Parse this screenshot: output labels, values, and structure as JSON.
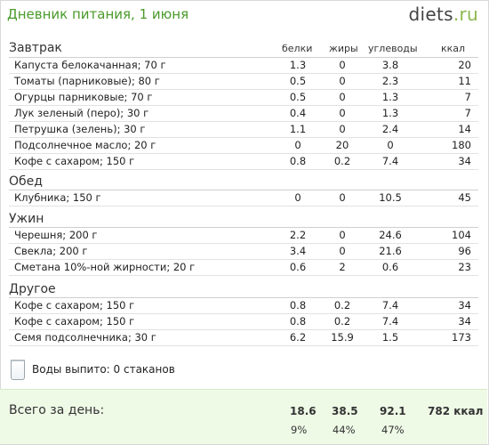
{
  "header": {
    "title": "Дневник питания, 1 июня",
    "logo": {
      "main": "diets",
      "dot": ".",
      "tld": "ru"
    }
  },
  "columns": {
    "protein": "белки",
    "fat": "жиры",
    "carbs": "углеводы",
    "kcal": "ккал"
  },
  "sections": [
    {
      "name": "Завтрак",
      "items": [
        {
          "name": "Капуста белокачанная; 70 г",
          "protein": "1.3",
          "fat": "0",
          "carbs": "3.8",
          "kcal": "20"
        },
        {
          "name": "Томаты (парниковые); 80 г",
          "protein": "0.5",
          "fat": "0",
          "carbs": "2.3",
          "kcal": "11"
        },
        {
          "name": "Огурцы парниковые; 70 г",
          "protein": "0.5",
          "fat": "0",
          "carbs": "1.3",
          "kcal": "7"
        },
        {
          "name": "Лук зеленый (перо); 30 г",
          "protein": "0.4",
          "fat": "0",
          "carbs": "1.3",
          "kcal": "7"
        },
        {
          "name": "Петрушка (зелень); 30 г",
          "protein": "1.1",
          "fat": "0",
          "carbs": "2.4",
          "kcal": "14"
        },
        {
          "name": "Подсолнечное масло; 20 г",
          "protein": "0",
          "fat": "20",
          "carbs": "0",
          "kcal": "180"
        },
        {
          "name": "Кофе с сахаром; 150 г",
          "protein": "0.8",
          "fat": "0.2",
          "carbs": "7.4",
          "kcal": "34"
        }
      ]
    },
    {
      "name": "Обед",
      "items": [
        {
          "name": "Клубника; 150 г",
          "protein": "0",
          "fat": "0",
          "carbs": "10.5",
          "kcal": "45"
        }
      ]
    },
    {
      "name": "Ужин",
      "items": [
        {
          "name": "Черешня; 200 г",
          "protein": "2.2",
          "fat": "0",
          "carbs": "24.6",
          "kcal": "104"
        },
        {
          "name": "Свекла; 200 г",
          "protein": "3.4",
          "fat": "0",
          "carbs": "21.6",
          "kcal": "96"
        },
        {
          "name": "Сметана 10%-ной жирности; 20 г",
          "protein": "0.6",
          "fat": "2",
          "carbs": "0.6",
          "kcal": "23"
        }
      ]
    },
    {
      "name": "Другое",
      "items": [
        {
          "name": "Кофе с сахаром; 150 г",
          "protein": "0.8",
          "fat": "0.2",
          "carbs": "7.4",
          "kcal": "34"
        },
        {
          "name": "Кофе с сахаром; 150 г",
          "protein": "0.8",
          "fat": "0.2",
          "carbs": "7.4",
          "kcal": "34"
        },
        {
          "name": "Семя подсолнечника; 30 г",
          "protein": "6.2",
          "fat": "15.9",
          "carbs": "1.5",
          "kcal": "173"
        }
      ]
    }
  ],
  "water": {
    "icon": "glass-icon",
    "text": "Воды выпито: 0 стаканов"
  },
  "total": {
    "label": "Всего за день:",
    "protein": "18.6",
    "fat": "38.5",
    "carbs": "92.1",
    "kcal": "782 ккал",
    "protein_pct": "9%",
    "fat_pct": "44%",
    "carbs_pct": "47%"
  },
  "colors": {
    "title": "#4a9a2a",
    "total_bg": "#eef9e6",
    "logo_accent": "#8ab84a"
  }
}
